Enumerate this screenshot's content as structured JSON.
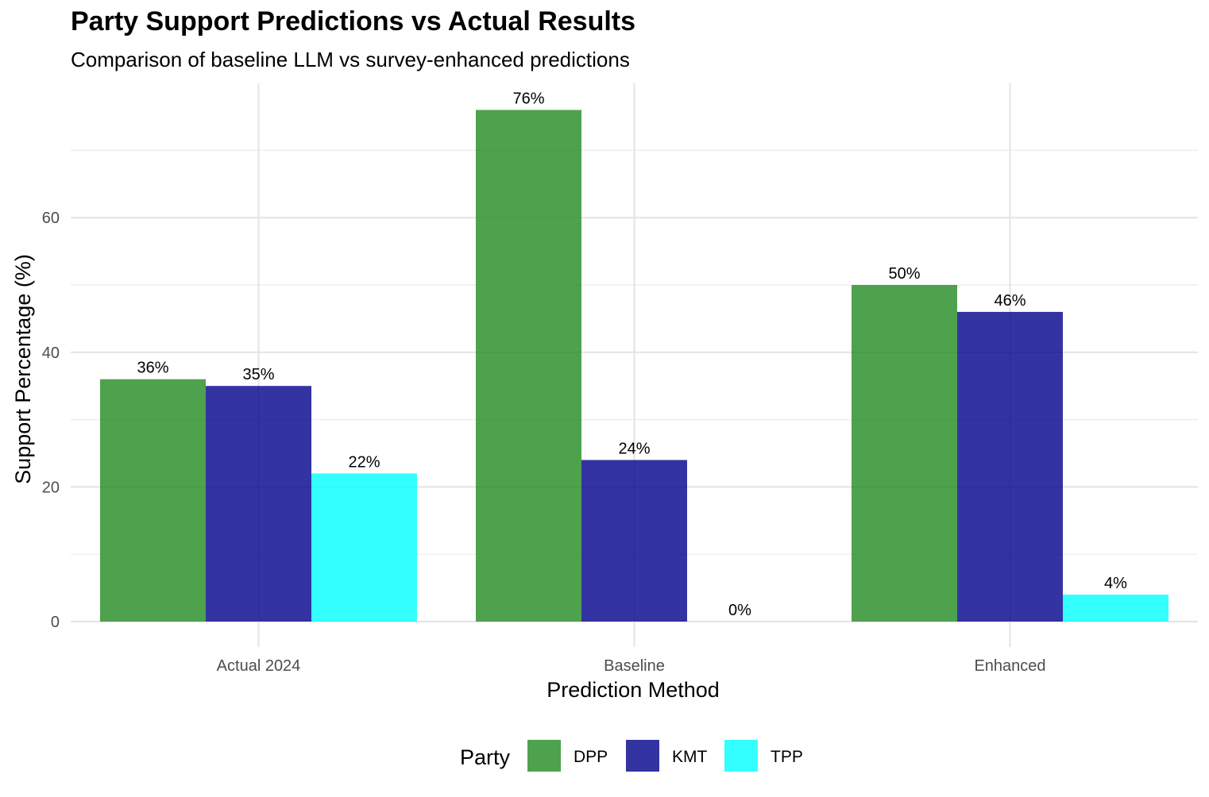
{
  "chart_data": {
    "type": "bar",
    "title": "Party Support Predictions vs Actual Results",
    "subtitle": "Comparison of baseline LLM vs survey-enhanced predictions",
    "xlabel": "Prediction Method",
    "ylabel": "Support Percentage (%)",
    "categories": [
      "Actual 2024",
      "Baseline",
      "Enhanced"
    ],
    "series": [
      {
        "name": "DPP",
        "values": [
          36,
          76,
          50
        ],
        "labels": [
          "36%",
          "76%",
          "50%"
        ],
        "color": "#228B22"
      },
      {
        "name": "KMT",
        "values": [
          35,
          24,
          46
        ],
        "labels": [
          "35%",
          "24%",
          "46%"
        ],
        "color": "#00008B"
      },
      {
        "name": "TPP",
        "values": [
          22,
          0,
          4
        ],
        "labels": [
          "22%",
          "0%",
          "4%"
        ],
        "color": "#00FFFF"
      }
    ],
    "yticks": [
      0,
      20,
      40,
      60
    ],
    "ylim": [
      0,
      80
    ],
    "legend_title": "Party",
    "legend_position": "bottom",
    "grid": true
  }
}
